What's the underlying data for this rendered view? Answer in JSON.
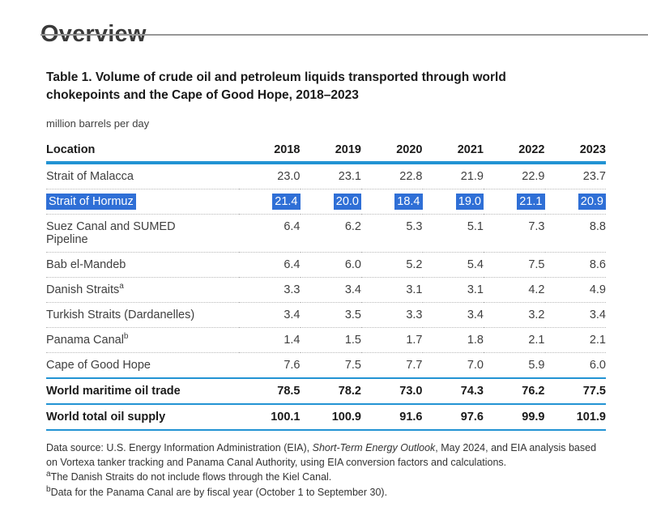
{
  "page": {
    "heading": "Overview",
    "table_title_line1": "Table 1. Volume of crude oil and petroleum liquids transported through world",
    "table_title_line2": "chokepoints and the Cape of Good Hope, 2018–2023",
    "units_label": "million barrels per day"
  },
  "table": {
    "columns": [
      "Location",
      "2018",
      "2019",
      "2020",
      "2021",
      "2022",
      "2023"
    ],
    "rows": [
      {
        "location": "Strait of Malacca",
        "footnote": "",
        "values": [
          "23.0",
          "23.1",
          "22.8",
          "21.9",
          "22.9",
          "23.7"
        ],
        "highlighted": false
      },
      {
        "location": "Strait of Hormuz",
        "footnote": "",
        "values": [
          "21.4",
          "20.0",
          "18.4",
          "19.0",
          "21.1",
          "20.9"
        ],
        "highlighted": true
      },
      {
        "location": "Suez Canal and SUMED Pipeline",
        "footnote": "",
        "values": [
          "6.4",
          "6.2",
          "5.3",
          "5.1",
          "7.3",
          "8.8"
        ],
        "highlighted": false
      },
      {
        "location": "Bab el-Mandeb",
        "footnote": "",
        "values": [
          "6.4",
          "6.0",
          "5.2",
          "5.4",
          "7.5",
          "8.6"
        ],
        "highlighted": false
      },
      {
        "location": "Danish Straits",
        "footnote": "a",
        "values": [
          "3.3",
          "3.4",
          "3.1",
          "3.1",
          "4.2",
          "4.9"
        ],
        "highlighted": false
      },
      {
        "location": "Turkish Straits (Dardanelles)",
        "footnote": "",
        "values": [
          "3.4",
          "3.5",
          "3.3",
          "3.4",
          "3.2",
          "3.4"
        ],
        "highlighted": false
      },
      {
        "location": "Panama Canal",
        "footnote": "b",
        "values": [
          "1.4",
          "1.5",
          "1.7",
          "1.8",
          "2.1",
          "2.1"
        ],
        "highlighted": false
      },
      {
        "location": "Cape of Good Hope",
        "footnote": "",
        "values": [
          "7.6",
          "7.5",
          "7.7",
          "7.0",
          "5.9",
          "6.0"
        ],
        "highlighted": false
      }
    ],
    "summary_rows": [
      {
        "location": "World maritime oil trade",
        "values": [
          "78.5",
          "78.2",
          "73.0",
          "74.3",
          "76.2",
          "77.5"
        ]
      },
      {
        "location": "World total oil supply",
        "values": [
          "100.1",
          "100.9",
          "91.6",
          "97.6",
          "99.9",
          "101.9"
        ]
      }
    ]
  },
  "footer": {
    "data_source_prefix": "Data source: U.S. Energy Information Administration (EIA), ",
    "data_source_italic": "Short-Term Energy Outlook",
    "data_source_suffix": ", May 2024, and EIA analysis based on Vortexa tanker tracking and Panama Canal Authority, using EIA conversion factors and calculations.",
    "footnote_a_marker": "a",
    "footnote_a_text": "The Danish Straits do not include flows through the Kiel Canal.",
    "footnote_b_marker": "b",
    "footnote_b_text": "Data for the Panama Canal are by fiscal year (October 1 to September 30)."
  },
  "colors": {
    "accent_blue": "#2293d3",
    "selection_blue": "#2f6fd6",
    "top_rule_gray": "#979797"
  }
}
